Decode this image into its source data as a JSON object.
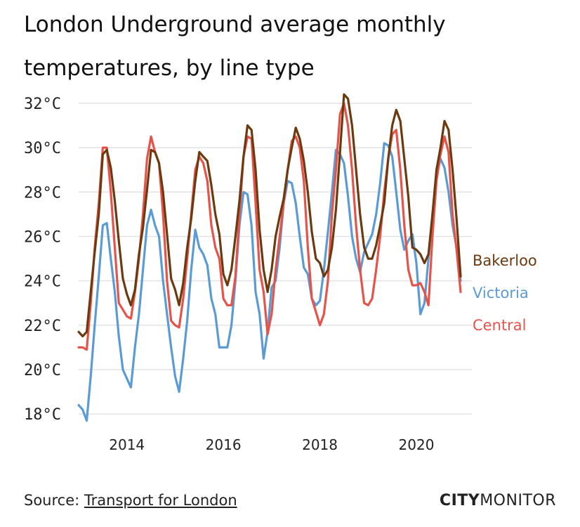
{
  "title": "London Underground average monthly temperatures, by line type",
  "source": {
    "prefix": "Source:",
    "link_text": "Transport for London"
  },
  "brand": {
    "part1": "CITY",
    "part2": "MONITOR"
  },
  "colors": {
    "Bakerloo": "#6b3a0f",
    "Victoria": "#5b9bd5",
    "Central": "#e5534b",
    "grid": "#e3e3e3"
  },
  "chart_data": {
    "type": "line",
    "title": "London Underground average monthly temperatures, by line type",
    "xlabel": "",
    "ylabel": "",
    "ylim": [
      17.5,
      32.6
    ],
    "xlim": [
      2013.0,
      2021.15
    ],
    "yticks": [
      {
        "value": 18,
        "label": "18°C"
      },
      {
        "value": 20,
        "label": "20°C"
      },
      {
        "value": 22,
        "label": "22°C"
      },
      {
        "value": 24,
        "label": "24°C"
      },
      {
        "value": 26,
        "label": "26°C"
      },
      {
        "value": 28,
        "label": "28°C"
      },
      {
        "value": 30,
        "label": "30°C"
      },
      {
        "value": 32,
        "label": "32°C"
      }
    ],
    "xticks": [
      {
        "value": 2014,
        "label": "2014"
      },
      {
        "value": 2016,
        "label": "2016"
      },
      {
        "value": 2018,
        "label": "2018"
      },
      {
        "value": 2020,
        "label": "2020"
      }
    ],
    "grid": "horizontal",
    "legend": "right, labels at line ends",
    "x": [
      2013.0,
      2013.083,
      2013.167,
      2013.25,
      2013.333,
      2013.417,
      2013.5,
      2013.583,
      2013.667,
      2013.75,
      2013.833,
      2013.917,
      2014.0,
      2014.083,
      2014.167,
      2014.25,
      2014.333,
      2014.417,
      2014.5,
      2014.583,
      2014.667,
      2014.75,
      2014.833,
      2014.917,
      2015.0,
      2015.083,
      2015.167,
      2015.25,
      2015.333,
      2015.417,
      2015.5,
      2015.583,
      2015.667,
      2015.75,
      2015.833,
      2015.917,
      2016.0,
      2016.083,
      2016.167,
      2016.25,
      2016.333,
      2016.417,
      2016.5,
      2016.583,
      2016.667,
      2016.75,
      2016.833,
      2016.917,
      2017.0,
      2017.083,
      2017.167,
      2017.25,
      2017.333,
      2017.417,
      2017.5,
      2017.583,
      2017.667,
      2017.75,
      2017.833,
      2017.917,
      2018.0,
      2018.083,
      2018.167,
      2018.25,
      2018.333,
      2018.417,
      2018.5,
      2018.583,
      2018.667,
      2018.75,
      2018.833,
      2018.917,
      2019.0,
      2019.083,
      2019.167,
      2019.25,
      2019.333,
      2019.417,
      2019.5,
      2019.583,
      2019.667,
      2019.75,
      2019.833,
      2019.917,
      2020.0,
      2020.083,
      2020.167,
      2020.25,
      2020.333,
      2020.417,
      2020.5,
      2020.583,
      2020.667,
      2020.75,
      2020.833,
      2020.917
    ],
    "series": [
      {
        "name": "Bakerloo",
        "values": [
          21.7,
          21.5,
          21.7,
          23.5,
          25.3,
          27.0,
          29.7,
          29.9,
          29.1,
          27.6,
          25.8,
          24.1,
          23.4,
          22.9,
          23.6,
          25.2,
          26.4,
          28.1,
          29.9,
          29.8,
          29.3,
          28.0,
          26.1,
          24.1,
          23.6,
          22.9,
          23.9,
          25.5,
          26.8,
          28.5,
          29.8,
          29.6,
          29.4,
          28.3,
          27.0,
          26.1,
          24.3,
          23.8,
          24.5,
          26.0,
          27.6,
          29.6,
          31.0,
          30.8,
          29.0,
          26.3,
          24.5,
          23.5,
          24.5,
          26.0,
          26.9,
          27.7,
          29.0,
          30.0,
          30.9,
          30.4,
          29.4,
          28.0,
          26.2,
          25.0,
          24.8,
          24.2,
          24.5,
          25.5,
          27.2,
          29.8,
          32.4,
          32.2,
          31.0,
          29.0,
          27.0,
          25.5,
          25.0,
          25.0,
          25.6,
          26.5,
          27.5,
          29.5,
          31.0,
          31.7,
          31.2,
          29.5,
          27.8,
          25.5,
          25.4,
          25.2,
          24.8,
          25.2,
          27.0,
          29.0,
          30.0,
          31.2,
          30.8,
          29.0,
          26.8,
          24.2
        ]
      },
      {
        "name": "Victoria",
        "values": [
          18.4,
          18.2,
          17.7,
          19.7,
          22.0,
          24.2,
          26.5,
          26.6,
          25.0,
          23.5,
          21.5,
          20.0,
          19.6,
          19.2,
          21.0,
          22.5,
          24.5,
          26.5,
          27.2,
          26.5,
          26.0,
          24.0,
          22.5,
          21.0,
          19.7,
          19.0,
          20.5,
          22.2,
          24.5,
          26.3,
          25.5,
          25.2,
          24.7,
          23.2,
          22.5,
          21.0,
          21.0,
          21.0,
          22.0,
          24.0,
          26.5,
          28.0,
          27.9,
          26.5,
          23.5,
          22.5,
          20.5,
          21.7,
          23.7,
          24.0,
          25.5,
          27.5,
          28.5,
          28.4,
          27.5,
          26.0,
          24.6,
          24.3,
          23.2,
          22.9,
          23.1,
          24.5,
          26.2,
          28.0,
          29.9,
          29.7,
          29.3,
          27.8,
          26.0,
          25.0,
          24.4,
          25.3,
          25.7,
          26.1,
          27.0,
          28.4,
          30.2,
          30.1,
          29.6,
          28.0,
          26.3,
          25.4,
          25.8,
          26.1,
          24.8,
          22.5,
          23.0,
          25.0,
          27.0,
          28.7,
          29.5,
          29.1,
          28.0,
          26.5,
          25.5,
          24.0
        ]
      },
      {
        "name": "Central",
        "values": [
          21.0,
          21.0,
          20.9,
          23.0,
          25.5,
          27.5,
          30.0,
          30.0,
          28.0,
          25.5,
          23.0,
          22.7,
          22.4,
          22.3,
          23.5,
          25.0,
          27.0,
          29.5,
          30.5,
          29.8,
          29.3,
          27.0,
          24.0,
          22.2,
          22.0,
          21.9,
          23.2,
          25.0,
          27.0,
          29.0,
          29.6,
          29.3,
          28.5,
          26.5,
          25.5,
          25.0,
          23.2,
          22.9,
          22.9,
          24.2,
          27.0,
          29.6,
          30.5,
          30.4,
          27.5,
          24.5,
          23.5,
          21.6,
          22.5,
          24.5,
          26.0,
          27.5,
          29.0,
          30.3,
          30.5,
          30.0,
          28.5,
          25.5,
          23.2,
          22.6,
          22.0,
          22.5,
          24.0,
          27.0,
          29.0,
          31.5,
          32.0,
          31.0,
          29.0,
          26.5,
          24.5,
          23.0,
          22.9,
          23.2,
          24.5,
          26.0,
          28.0,
          29.5,
          30.6,
          30.8,
          29.0,
          26.5,
          24.5,
          23.8,
          23.8,
          23.9,
          23.5,
          22.9,
          26.0,
          28.5,
          29.7,
          30.5,
          29.8,
          27.0,
          25.4,
          23.5
        ]
      }
    ]
  }
}
